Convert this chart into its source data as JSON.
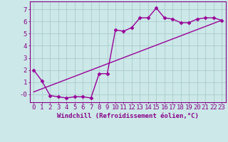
{
  "line1_x": [
    0,
    1,
    2,
    3,
    4,
    5,
    6,
    7,
    8,
    9,
    10,
    11,
    12,
    13,
    14,
    15,
    16,
    17,
    18,
    19,
    20,
    21,
    22,
    23
  ],
  "line1_y": [
    2.0,
    1.1,
    -0.1,
    -0.2,
    -0.3,
    -0.2,
    -0.2,
    -0.3,
    1.7,
    1.7,
    5.3,
    5.2,
    5.5,
    6.3,
    6.3,
    7.1,
    6.3,
    6.2,
    5.9,
    5.9,
    6.2,
    6.3,
    6.3,
    6.1
  ],
  "line2_x": [
    0,
    23
  ],
  "line2_y": [
    0.2,
    6.1
  ],
  "bg_color": "#cce8e8",
  "line_color": "#990099",
  "grid_color": "#aacccc",
  "xlabel": "Windchill (Refroidissement éolien,°C)",
  "ylim": [
    -0.65,
    7.65
  ],
  "xlim": [
    -0.5,
    23.5
  ],
  "yticks": [
    0,
    1,
    2,
    3,
    4,
    5,
    6,
    7
  ],
  "xticks": [
    0,
    1,
    2,
    3,
    4,
    5,
    6,
    7,
    8,
    9,
    10,
    11,
    12,
    13,
    14,
    15,
    16,
    17,
    18,
    19,
    20,
    21,
    22,
    23
  ],
  "marker": "D",
  "markersize": 2.5,
  "linewidth": 1.0,
  "xlabel_fontsize": 6.5,
  "tick_fontsize": 6.5,
  "tick_color": "#880088",
  "label_color": "#880088",
  "axis_color": "#880088"
}
